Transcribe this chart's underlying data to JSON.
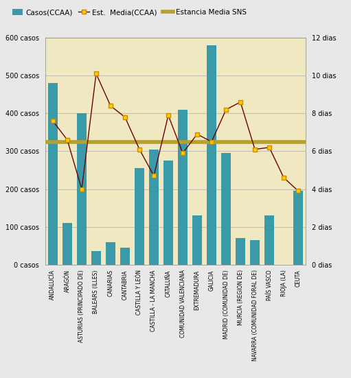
{
  "categories": [
    "ANDALUCÍA",
    "ARAGÓN",
    "ASTURIAS (PRINCIPADO DE)",
    "BALEARS (ILLES)",
    "CANARIAS",
    "CANTABRIA",
    "CASTILLA Y LEÓN",
    "CASTILLA - LA MANCHA",
    "CATALUÑA",
    "COMUNIDAD VALENCIANA",
    "EXTREMADURA",
    "GALICIA",
    "MADRID (COMUNIDAD DE)",
    "MURCIA (REGION DE)",
    "NAVARRA (COMUNIDAD FORAL DE)",
    "PAÍS VASCO",
    "RIOJA (LA)",
    "CEUTA"
  ],
  "casos": [
    480,
    110,
    400,
    35,
    60,
    45,
    255,
    305,
    275,
    410,
    130,
    580,
    295,
    70,
    65,
    130,
    0,
    195
  ],
  "est_media": [
    7.6,
    6.6,
    4.0,
    10.1,
    8.4,
    7.8,
    6.1,
    4.7,
    7.9,
    5.9,
    6.9,
    6.5,
    8.2,
    8.6,
    6.1,
    6.2,
    4.6,
    3.9
  ],
  "estancia_media_sns": 6.5,
  "bar_color": "#3a9aaa",
  "line_color": "#6b0000",
  "line_marker_facecolor": "#ffcc00",
  "line_marker_edgecolor": "#cc8800",
  "sns_line_color": "#b5a030",
  "background_color": "#f0e8c0",
  "fig_background_color": "#e8e8e8",
  "ylim_left": [
    0,
    600
  ],
  "ylim_right": [
    0,
    12
  ],
  "yticks_left": [
    0,
    100,
    200,
    300,
    400,
    500,
    600
  ],
  "yticks_left_labels": [
    "0 casos",
    "100 casos",
    "200 casos",
    "300 casos",
    "400 casos",
    "500 casos",
    "600 casos"
  ],
  "yticks_right": [
    0,
    2,
    4,
    6,
    8,
    10,
    12
  ],
  "yticks_right_labels": [
    "0 dias",
    "2 dias",
    "4 dias",
    "6 dias",
    "8 dias",
    "10 dias",
    "12 dias"
  ],
  "legend_casos_label": "Casos(CCAA)",
  "legend_est_label": "Est.  Media(CCAA)",
  "legend_sns_label": "Estancia Media SNS"
}
